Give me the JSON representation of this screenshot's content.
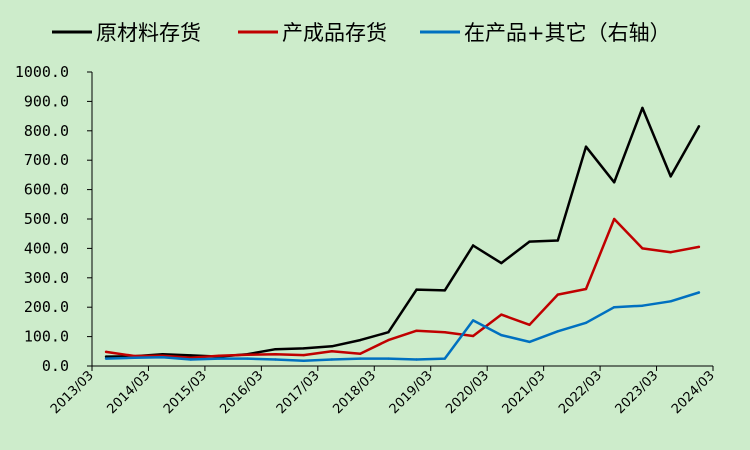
{
  "chart_data": {
    "type": "line",
    "title": "",
    "xlabel": "",
    "ylabel": "",
    "ylim": [
      0,
      1000
    ],
    "y_ticks": [
      "0.0",
      "100.0",
      "200.0",
      "300.0",
      "400.0",
      "500.0",
      "600.0",
      "700.0",
      "800.0",
      "900.0",
      "1000.0"
    ],
    "x_ticks": [
      "2013/03",
      "2014/03",
      "2015/03",
      "2016/03",
      "2017/03",
      "2018/03",
      "2019/03",
      "2020/03",
      "2021/03",
      "2022/03",
      "2023/03",
      "2024/03"
    ],
    "grid": false,
    "legend_position": "top",
    "x": [
      "2013/06",
      "2013/12",
      "2014/06",
      "2014/12",
      "2015/06",
      "2015/12",
      "2016/06",
      "2016/12",
      "2017/06",
      "2017/12",
      "2018/06",
      "2018/12",
      "2019/06",
      "2019/12",
      "2020/06",
      "2020/12",
      "2021/06",
      "2021/12",
      "2022/06",
      "2022/12",
      "2023/06",
      "2023/12"
    ],
    "series": [
      {
        "name": "原材料存货",
        "color": "#000000",
        "axis": "left",
        "values": [
          32,
          33,
          40,
          36,
          32,
          40,
          57,
          60,
          67,
          88,
          115,
          260,
          257,
          410,
          350,
          423,
          427,
          746,
          625,
          878,
          645,
          815
        ]
      },
      {
        "name": "产成品存货",
        "color": "#c00000",
        "axis": "left",
        "values": [
          48,
          34,
          35,
          28,
          35,
          38,
          40,
          37,
          50,
          42,
          88,
          120,
          115,
          102,
          175,
          140,
          243,
          262,
          500,
          400,
          387,
          405
        ]
      },
      {
        "name": "在产品+其它（右轴）",
        "color": "#0070c0",
        "axis": "right",
        "values": [
          25,
          28,
          30,
          22,
          25,
          25,
          22,
          18,
          22,
          25,
          25,
          22,
          25,
          155,
          105,
          82,
          118,
          147,
          200,
          205,
          220,
          250
        ]
      }
    ]
  }
}
